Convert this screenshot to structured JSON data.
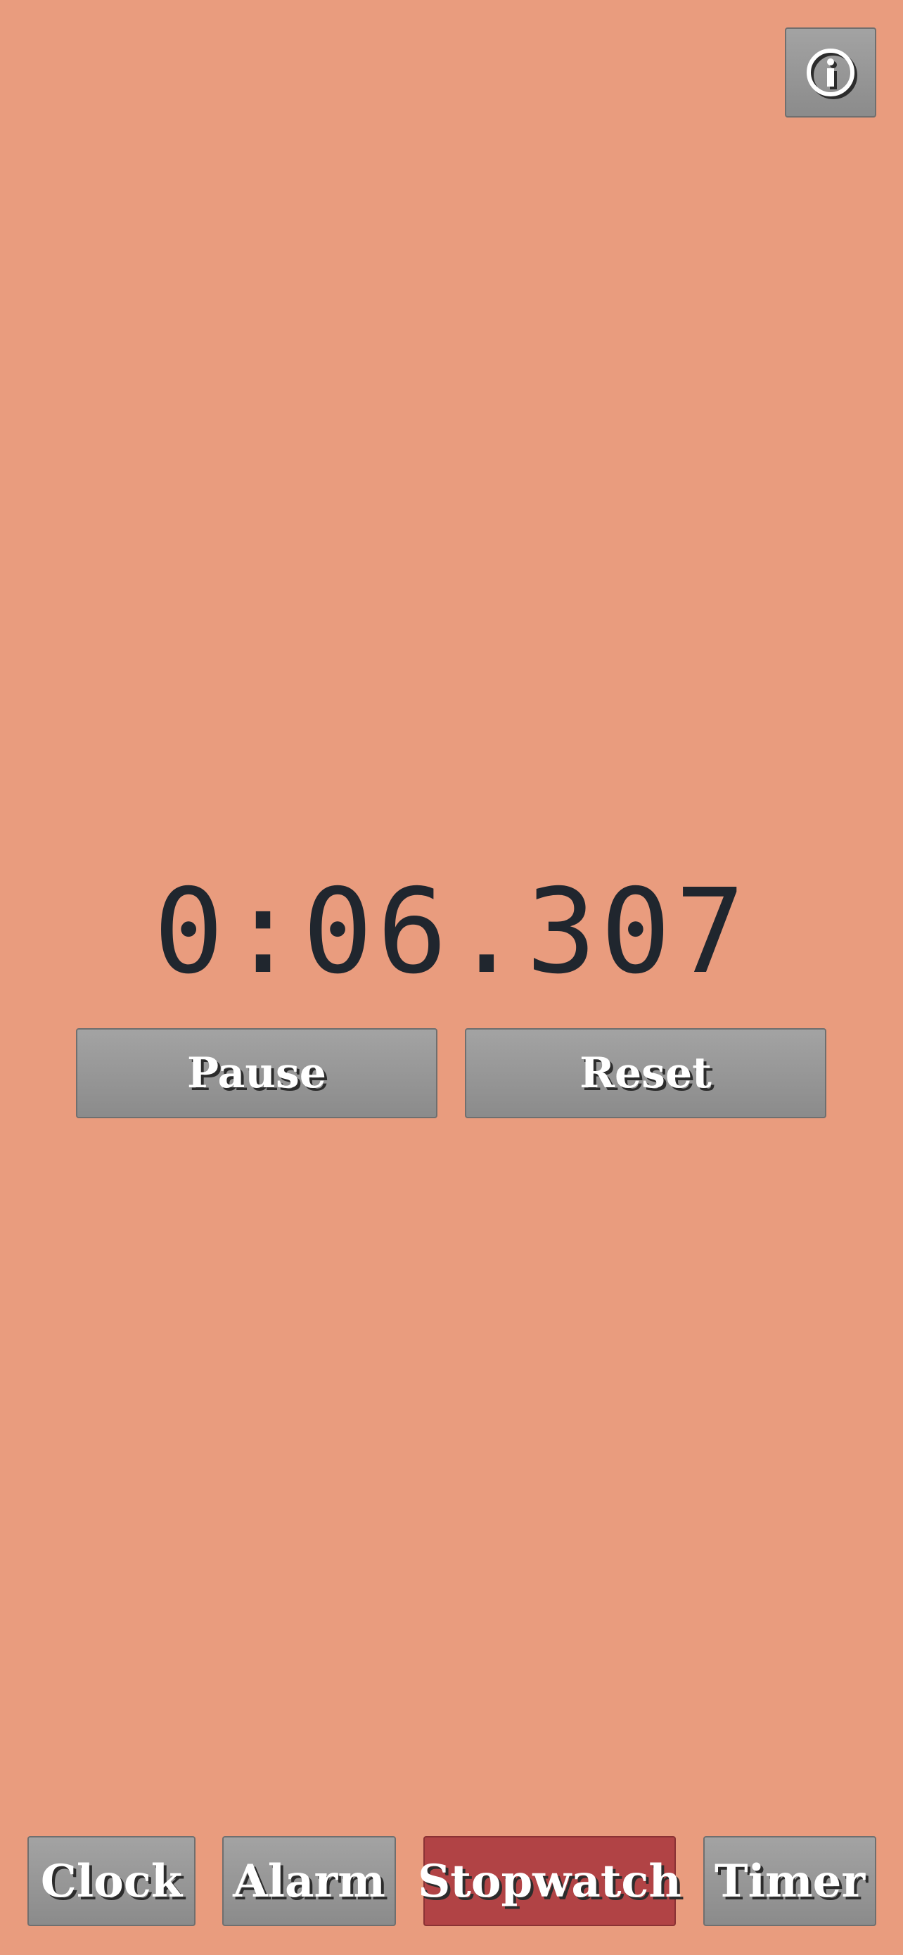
{
  "info_button": {
    "icon": "info-icon"
  },
  "stopwatch": {
    "elapsed": "0:06.307"
  },
  "controls": {
    "pause_label": "Pause",
    "reset_label": "Reset"
  },
  "tabs": [
    {
      "label": "Clock",
      "active": false
    },
    {
      "label": "Alarm",
      "active": false
    },
    {
      "label": "Stopwatch",
      "active": true
    },
    {
      "label": "Timer",
      "active": false
    }
  ],
  "colors": {
    "background": "#e99c7e",
    "button": "#999999",
    "active_tab": "#b14345",
    "display_text": "#20262e"
  }
}
